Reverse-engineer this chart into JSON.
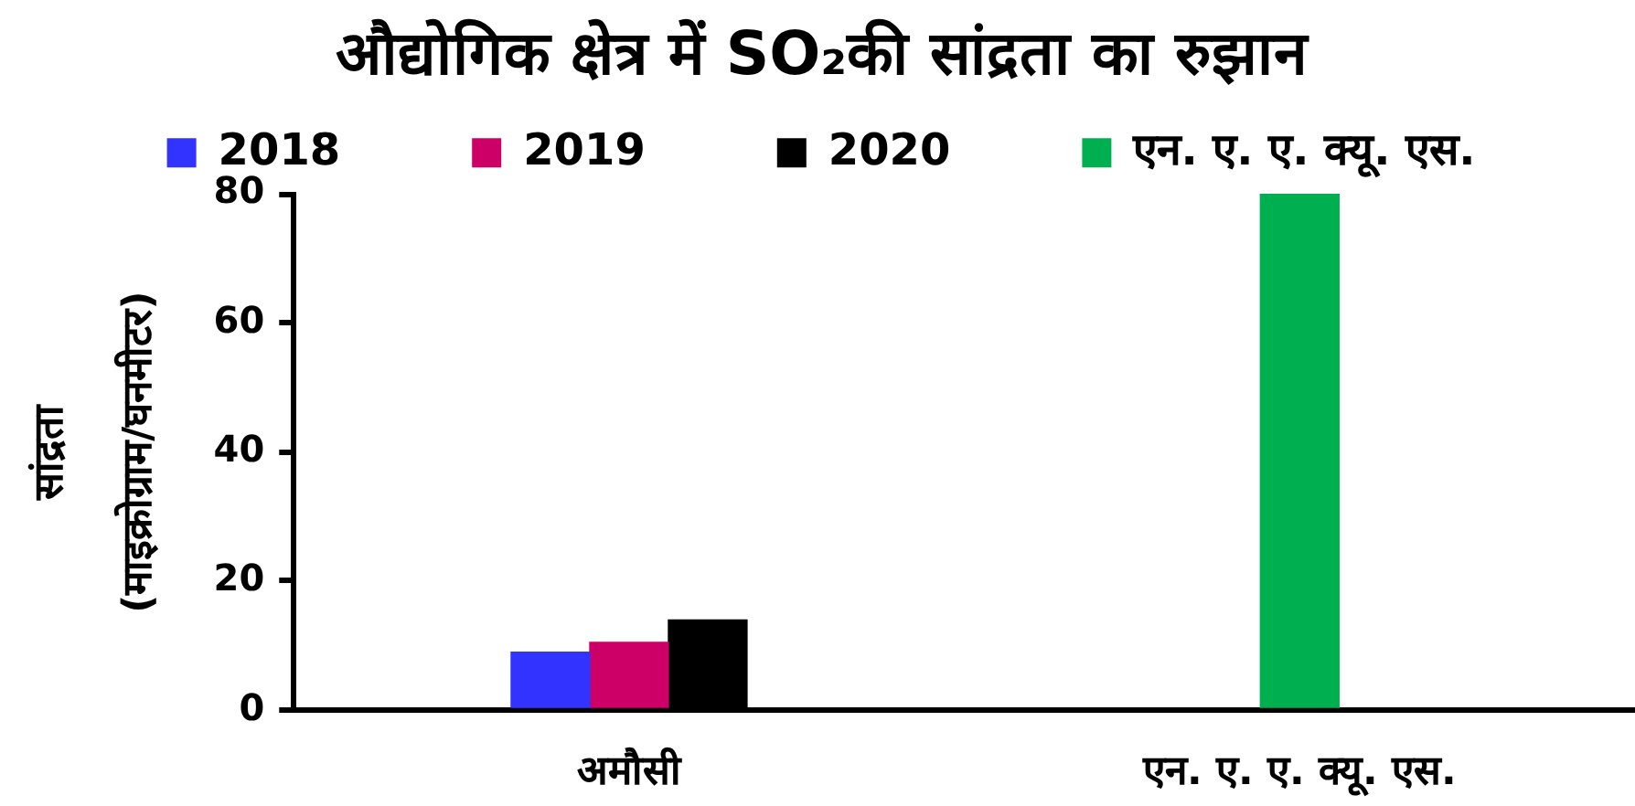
{
  "chart_data": {
    "type": "bar",
    "title": "औद्योगिक क्षेत्र में SO₂की सांद्रता का रुझान",
    "ylabel": "सांद्रता\n(माइक्रोग्राम/घनमीटर)",
    "categories": [
      "अमौसी",
      "एन. ए. ए. क्यू. एस."
    ],
    "series": [
      {
        "name": "2018",
        "color": "#3333ff",
        "values": [
          9,
          null
        ]
      },
      {
        "name": "2019",
        "color": "#cc0066",
        "values": [
          10.5,
          null
        ]
      },
      {
        "name": "2020",
        "color": "#000000",
        "values": [
          14,
          null
        ]
      },
      {
        "name": "एन. ए. ए. क्यू. एस.",
        "color": "#00b050",
        "values": [
          null,
          80
        ]
      }
    ],
    "ylim": [
      0,
      80
    ],
    "yticks": [
      0,
      20,
      40,
      60,
      80
    ],
    "grid": false,
    "legend": "top"
  }
}
